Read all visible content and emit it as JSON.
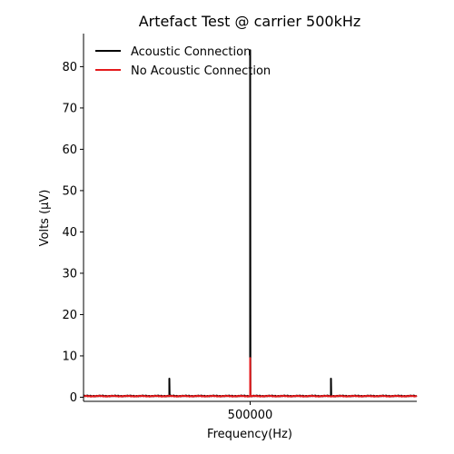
{
  "chart_data": {
    "type": "line",
    "title": "Artefact Test @ carrier 500kHz",
    "xlabel": "Frequency(Hz)",
    "ylabel": "Volts (μV)",
    "xlim": [
      490000,
      510000
    ],
    "ylim": [
      -1,
      88
    ],
    "x_ticks": [
      500000
    ],
    "x_tick_labels": [
      "500000"
    ],
    "y_ticks": [
      0,
      10,
      20,
      30,
      40,
      50,
      60,
      70,
      80
    ],
    "y_tick_labels": [
      "0",
      "10",
      "20",
      "30",
      "40",
      "50",
      "60",
      "70",
      "80"
    ],
    "grid": false,
    "legend_position": "upper-left",
    "series": [
      {
        "name": "Acoustic Connection",
        "color": "#000000",
        "baseline": 0.3,
        "peaks": [
          {
            "x": 495150,
            "y": 4.5
          },
          {
            "x": 500000,
            "y": 84.0
          },
          {
            "x": 504850,
            "y": 4.5
          }
        ]
      },
      {
        "name": "No Acoustic Connection",
        "color": "#e41a1c",
        "baseline": 0.25,
        "peaks": [
          {
            "x": 500000,
            "y": 9.5
          }
        ]
      }
    ]
  }
}
